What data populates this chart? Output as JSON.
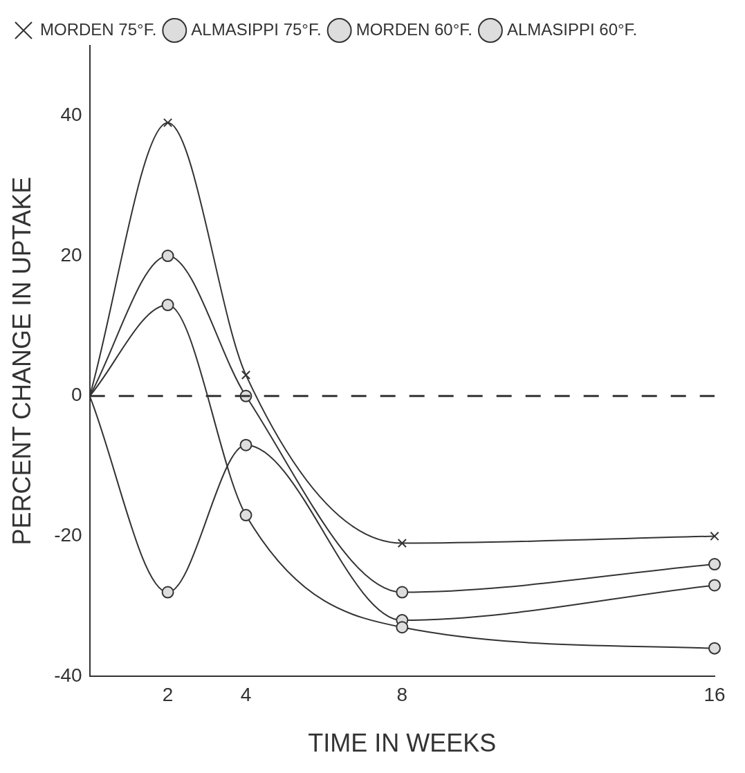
{
  "chart_data": {
    "type": "line",
    "xlabel": "TIME IN WEEKS",
    "ylabel": "PERCENT CHANGE IN UPTAKE",
    "x": [
      0,
      2,
      4,
      8,
      16
    ],
    "series": [
      {
        "name": "MORDEN 75°F.",
        "color": "#333333",
        "marker": "cross",
        "values": [
          0,
          39,
          3,
          -21,
          -20
        ]
      },
      {
        "name": "ALMASIPPI 75°F.",
        "color": "#333333",
        "marker": "circle",
        "values": [
          0,
          20,
          0,
          -28,
          -24
        ]
      },
      {
        "name": "MORDEN 60°F.",
        "color": "#333333",
        "marker": "circle",
        "values": [
          0,
          -28,
          -7,
          -32,
          -27
        ]
      },
      {
        "name": "ALMASIPPI 60°F.",
        "color": "#333333",
        "marker": "circle",
        "values": [
          0,
          13,
          -17,
          -33,
          -36
        ]
      }
    ],
    "xlim": [
      0,
      16
    ],
    "xticks": [
      2,
      4,
      8,
      16
    ],
    "ylim": [
      -40,
      50
    ],
    "yticks": [
      -40,
      -20,
      0,
      20,
      40
    ],
    "ref_lines": [
      {
        "axis": "y",
        "value": 0,
        "label": null,
        "line_style": "dashed",
        "color": "#333333"
      }
    ],
    "legend": "top left",
    "grid": false
  }
}
